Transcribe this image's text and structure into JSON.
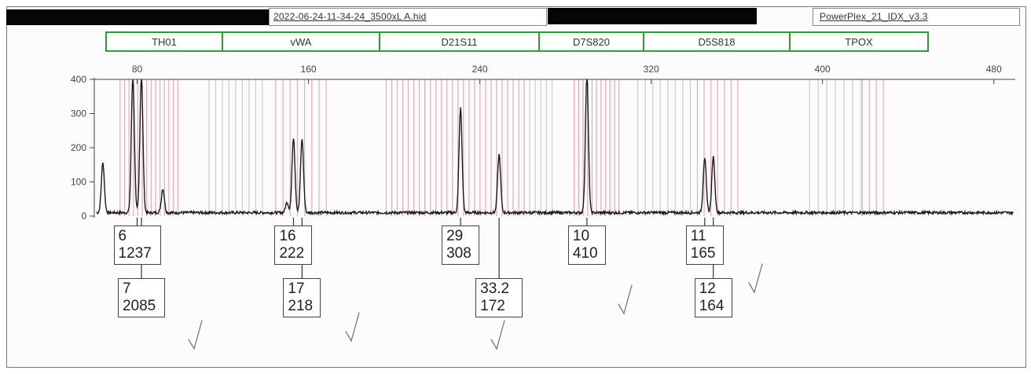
{
  "header": {
    "filename": "2022-06-24-11-34-24_3500xL A.hid",
    "kit": "PowerPlex_21_IDX_v3.3"
  },
  "loci": [
    "TH01",
    "vWA",
    "D21S11",
    "D7S820",
    "D5S818",
    "TPOX"
  ],
  "chart_data": {
    "type": "line",
    "title": "",
    "xlabel": "",
    "ylabel": "",
    "xlim": [
      60,
      490
    ],
    "ylim": [
      0,
      400
    ],
    "x_ticks": [
      80,
      160,
      240,
      320,
      400,
      480
    ],
    "y_ticks": [
      0,
      100,
      200,
      300,
      400
    ],
    "grid": false,
    "peaks": [
      {
        "x": 78,
        "height": 400
      },
      {
        "x": 82,
        "height": 400
      },
      {
        "x": 64,
        "height": 145
      },
      {
        "x": 92,
        "height": 70
      },
      {
        "x": 153,
        "height": 220
      },
      {
        "x": 157,
        "height": 215
      },
      {
        "x": 150,
        "height": 30
      },
      {
        "x": 231,
        "height": 305
      },
      {
        "x": 249,
        "height": 170
      },
      {
        "x": 290,
        "height": 400
      },
      {
        "x": 345,
        "height": 162
      },
      {
        "x": 349,
        "height": 162
      }
    ],
    "allele_calls": [
      {
        "x": 80,
        "allele": "6",
        "value": "1237",
        "row": 1
      },
      {
        "x": 82,
        "allele": "7",
        "value": "2085",
        "row": 2
      },
      {
        "x": 153,
        "allele": "16",
        "value": "222",
        "row": 1
      },
      {
        "x": 157,
        "allele": "17",
        "value": "218",
        "row": 2
      },
      {
        "x": 231,
        "allele": "29",
        "value": "308",
        "row": 1
      },
      {
        "x": 249,
        "allele": "33.2",
        "value": "172",
        "row": 2
      },
      {
        "x": 290,
        "allele": "10",
        "value": "410",
        "row": 1
      },
      {
        "x": 345,
        "allele": "11",
        "value": "165",
        "row": 1
      },
      {
        "x": 349,
        "allele": "12",
        "value": "164",
        "row": 2
      }
    ]
  }
}
